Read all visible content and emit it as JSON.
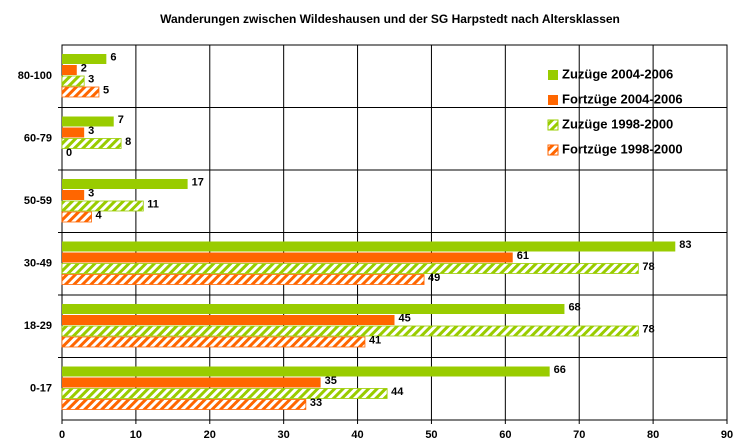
{
  "chart_data": {
    "type": "barh",
    "title": "Wanderungen zwischen Wildeshausen und der SG Harpstedt nach Altersklassen",
    "categories": [
      "0-17",
      "18-29",
      "30-49",
      "50-59",
      "60-79",
      "80-100"
    ],
    "series": [
      {
        "name": "Zuzüge 2004-2006",
        "color": "#99cc00",
        "hatched": false,
        "values": [
          66,
          68,
          83,
          17,
          7,
          6
        ]
      },
      {
        "name": "Fortzüge 2004-2006",
        "color": "#ff6600",
        "hatched": false,
        "values": [
          35,
          45,
          61,
          3,
          3,
          2
        ]
      },
      {
        "name": "Zuzüge 1998-2000",
        "color": "#99cc00",
        "hatched": true,
        "values": [
          44,
          78,
          78,
          11,
          8,
          3
        ]
      },
      {
        "name": "Fortzüge 1998-2000",
        "color": "#ff6600",
        "hatched": true,
        "values": [
          33,
          41,
          49,
          4,
          0,
          5
        ]
      }
    ],
    "xlim": [
      0,
      90
    ],
    "xticks": [
      0,
      10,
      20,
      30,
      40,
      50,
      60,
      70,
      80,
      90
    ],
    "grid": true,
    "legend": "top-right"
  }
}
